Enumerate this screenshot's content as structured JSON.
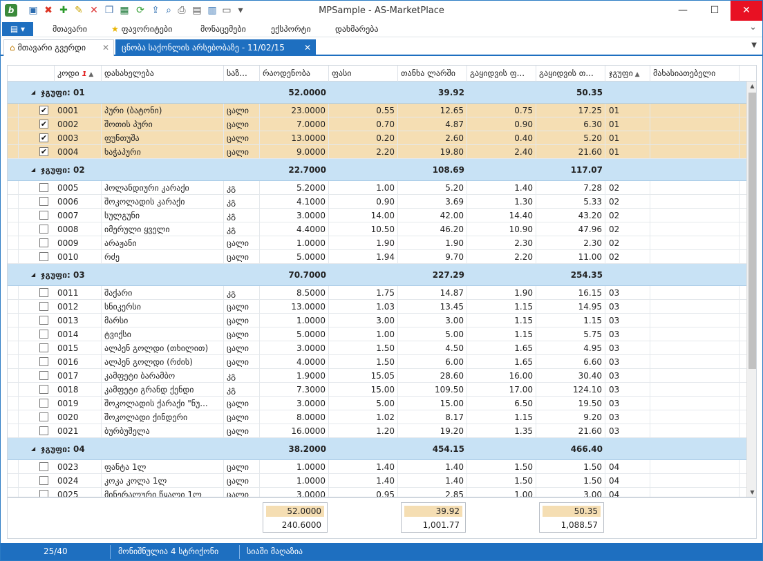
{
  "window": {
    "title": "MPSample - AS-MarketPlace",
    "minimize": "—",
    "maximize": "☐",
    "close": "✕"
  },
  "quick_access": [
    "mp-icon",
    "delete-icon",
    "add-icon",
    "edit-icon",
    "remove-icon",
    "copy-icon",
    "excel-icon",
    "refresh-icon",
    "export-icon",
    "preview-icon",
    "print-icon",
    "page-icon",
    "layout-icon",
    "window-icon",
    "dropdown-icon"
  ],
  "menu": {
    "items": [
      "მთავარი",
      "ფავორიტები",
      "მონაცემები",
      "ექსპორტი",
      "დახმარება"
    ],
    "expand": "⌄"
  },
  "tabs": [
    {
      "label": "მთავარი გვერდი",
      "close": "✕"
    },
    {
      "label": "ცნობა საქონლის არსებობაზე - 11/02/15",
      "close": "✕"
    }
  ],
  "grid": {
    "columns": [
      "კოდი",
      "დასახელება",
      "საზ...",
      "რაოდენობა",
      "ფასი",
      "თანხა ლარში",
      "გაყიდვის ფ...",
      "გაყიდვის თ...",
      "ჯგუფი",
      "მახასიათებელი"
    ],
    "sort_index": "1",
    "groups": [
      {
        "label": "ჯგუფი: 01",
        "qty": "52.0000",
        "amount": "39.92",
        "sale_total": "50.35",
        "rows": [
          [
            "0001",
            "პური (ბატონი)",
            "ცალი",
            "23.0000",
            "0.55",
            "12.65",
            "0.75",
            "17.25",
            "01",
            true
          ],
          [
            "0002",
            "შოთის პური",
            "ცალი",
            "7.0000",
            "0.70",
            "4.87",
            "0.90",
            "6.30",
            "01",
            true
          ],
          [
            "0003",
            "ფუნთუშა",
            "ცალი",
            "13.0000",
            "0.20",
            "2.60",
            "0.40",
            "5.20",
            "01",
            true
          ],
          [
            "0004",
            "ხაჭაპური",
            "ცალი",
            "9.0000",
            "2.20",
            "19.80",
            "2.40",
            "21.60",
            "01",
            true
          ]
        ]
      },
      {
        "label": "ჯგუფი: 02",
        "qty": "22.7000",
        "amount": "108.69",
        "sale_total": "117.07",
        "rows": [
          [
            "0005",
            "ჰოლანდიური კარაქი",
            "კგ",
            "5.2000",
            "1.00",
            "5.20",
            "1.40",
            "7.28",
            "02",
            false
          ],
          [
            "0006",
            "შოკოლადის კარაქი",
            "კგ",
            "4.1000",
            "0.90",
            "3.69",
            "1.30",
            "5.33",
            "02",
            false
          ],
          [
            "0007",
            "სულგუნი",
            "კგ",
            "3.0000",
            "14.00",
            "42.00",
            "14.40",
            "43.20",
            "02",
            false
          ],
          [
            "0008",
            "იმერული ყველი",
            "კგ",
            "4.4000",
            "10.50",
            "46.20",
            "10.90",
            "47.96",
            "02",
            false
          ],
          [
            "0009",
            "არაჟანი",
            "ცალი",
            "1.0000",
            "1.90",
            "1.90",
            "2.30",
            "2.30",
            "02",
            false
          ],
          [
            "0010",
            "რძე",
            "ცალი",
            "5.0000",
            "1.94",
            "9.70",
            "2.20",
            "11.00",
            "02",
            false
          ]
        ]
      },
      {
        "label": "ჯგუფი: 03",
        "qty": "70.7000",
        "amount": "227.29",
        "sale_total": "254.35",
        "rows": [
          [
            "0011",
            "შაქარი",
            "კგ",
            "8.5000",
            "1.75",
            "14.87",
            "1.90",
            "16.15",
            "03",
            false
          ],
          [
            "0012",
            "სნიკერსი",
            "ცალი",
            "13.0000",
            "1.03",
            "13.45",
            "1.15",
            "14.95",
            "03",
            false
          ],
          [
            "0013",
            "მარსი",
            "ცალი",
            "1.0000",
            "3.00",
            "3.00",
            "1.15",
            "1.15",
            "03",
            false
          ],
          [
            "0014",
            "ტვიქსი",
            "ცალი",
            "5.0000",
            "1.00",
            "5.00",
            "1.15",
            "5.75",
            "03",
            false
          ],
          [
            "0015",
            "ალპენ გოლდი (თხილით)",
            "ცალი",
            "3.0000",
            "1.50",
            "4.50",
            "1.65",
            "4.95",
            "03",
            false
          ],
          [
            "0016",
            "ალპენ გოლდი (რძის)",
            "ცალი",
            "4.0000",
            "1.50",
            "6.00",
            "1.65",
            "6.60",
            "03",
            false
          ],
          [
            "0017",
            "კამფეტი ბარამბო",
            "კგ",
            "1.9000",
            "15.05",
            "28.60",
            "16.00",
            "30.40",
            "03",
            false
          ],
          [
            "0018",
            "კამფეტი გრანდ ქენდი",
            "კგ",
            "7.3000",
            "15.00",
            "109.50",
            "17.00",
            "124.10",
            "03",
            false
          ],
          [
            "0019",
            "შოკოლადის ქარაქი \"ნუ...",
            "ცალი",
            "3.0000",
            "5.00",
            "15.00",
            "6.50",
            "19.50",
            "03",
            false
          ],
          [
            "0020",
            "შოკოლადი ქინდერი",
            "ცალი",
            "8.0000",
            "1.02",
            "8.17",
            "1.15",
            "9.20",
            "03",
            false
          ],
          [
            "0021",
            "ბურბუშელა",
            "ცალი",
            "16.0000",
            "1.20",
            "19.20",
            "1.35",
            "21.60",
            "03",
            false
          ]
        ]
      },
      {
        "label": "ჯგუფი: 04",
        "qty": "38.2000",
        "amount": "454.15",
        "sale_total": "466.40",
        "rows": [
          [
            "0023",
            "ფანტა 1ლ",
            "ცალი",
            "1.0000",
            "1.40",
            "1.40",
            "1.50",
            "1.50",
            "04",
            false
          ],
          [
            "0024",
            "კოკა კოლა 1ლ",
            "ცალი",
            "1.0000",
            "1.40",
            "1.40",
            "1.50",
            "1.50",
            "04",
            false
          ],
          [
            "0025",
            "მინერალური წყალი 1ლ",
            "ცალი",
            "3.0000",
            "0.95",
            "2.85",
            "1.00",
            "3.00",
            "04",
            false
          ]
        ]
      }
    ],
    "footer": {
      "qty_selected": "52.0000",
      "qty_total": "240.6000",
      "amount_selected": "39.92",
      "amount_total": "1,001.77",
      "sale_selected": "50.35",
      "sale_total": "1,088.57"
    }
  },
  "status": {
    "position": "25/40",
    "selected": "მონიშნულია 4 სტრიქონი",
    "list": "სიაში მაღაზია"
  }
}
